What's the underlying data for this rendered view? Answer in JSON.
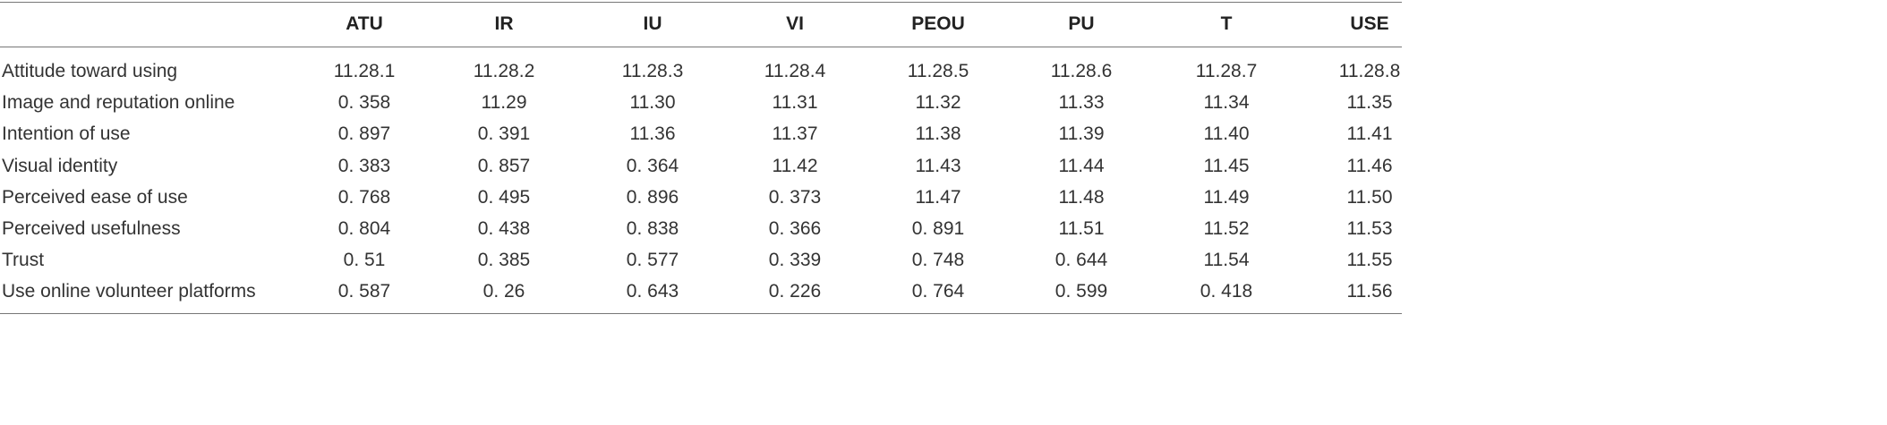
{
  "table": {
    "columns": [
      "ATU",
      "IR",
      "IU",
      "VI",
      "PEOU",
      "PU",
      "T",
      "USE"
    ],
    "rows": [
      {
        "label": "Attitude toward using",
        "cells": [
          "11.28.1",
          "11.28.2",
          "11.28.3",
          "11.28.4",
          "11.28.5",
          "11.28.6",
          "11.28.7",
          "11.28.8"
        ]
      },
      {
        "label": "Image and reputation online",
        "cells": [
          "0. 358",
          "11.29",
          "11.30",
          "11.31",
          "11.32",
          "11.33",
          "11.34",
          "11.35"
        ]
      },
      {
        "label": "Intention of use",
        "cells": [
          "0. 897",
          "0. 391",
          "11.36",
          "11.37",
          "11.38",
          "11.39",
          "11.40",
          "11.41"
        ]
      },
      {
        "label": "Visual identity",
        "cells": [
          "0. 383",
          "0. 857",
          "0. 364",
          "11.42",
          "11.43",
          "11.44",
          "11.45",
          "11.46"
        ]
      },
      {
        "label": "Perceived ease of use",
        "cells": [
          "0. 768",
          "0. 495",
          "0. 896",
          "0. 373",
          "11.47",
          "11.48",
          "11.49",
          "11.50"
        ]
      },
      {
        "label": "Perceived usefulness",
        "cells": [
          "0. 804",
          "0. 438",
          "0. 838",
          "0. 366",
          "0. 891",
          "11.51",
          "11.52",
          "11.53"
        ]
      },
      {
        "label": "Trust",
        "cells": [
          "0. 51",
          "0. 385",
          "0. 577",
          "0. 339",
          "0. 748",
          "0. 644",
          "11.54",
          "11.55"
        ]
      },
      {
        "label": "Use online volunteer platforms",
        "cells": [
          "0. 587",
          "0. 26",
          "0. 643",
          "0. 226",
          "0. 764",
          "0. 599",
          "0. 418",
          "11.56"
        ]
      }
    ]
  }
}
